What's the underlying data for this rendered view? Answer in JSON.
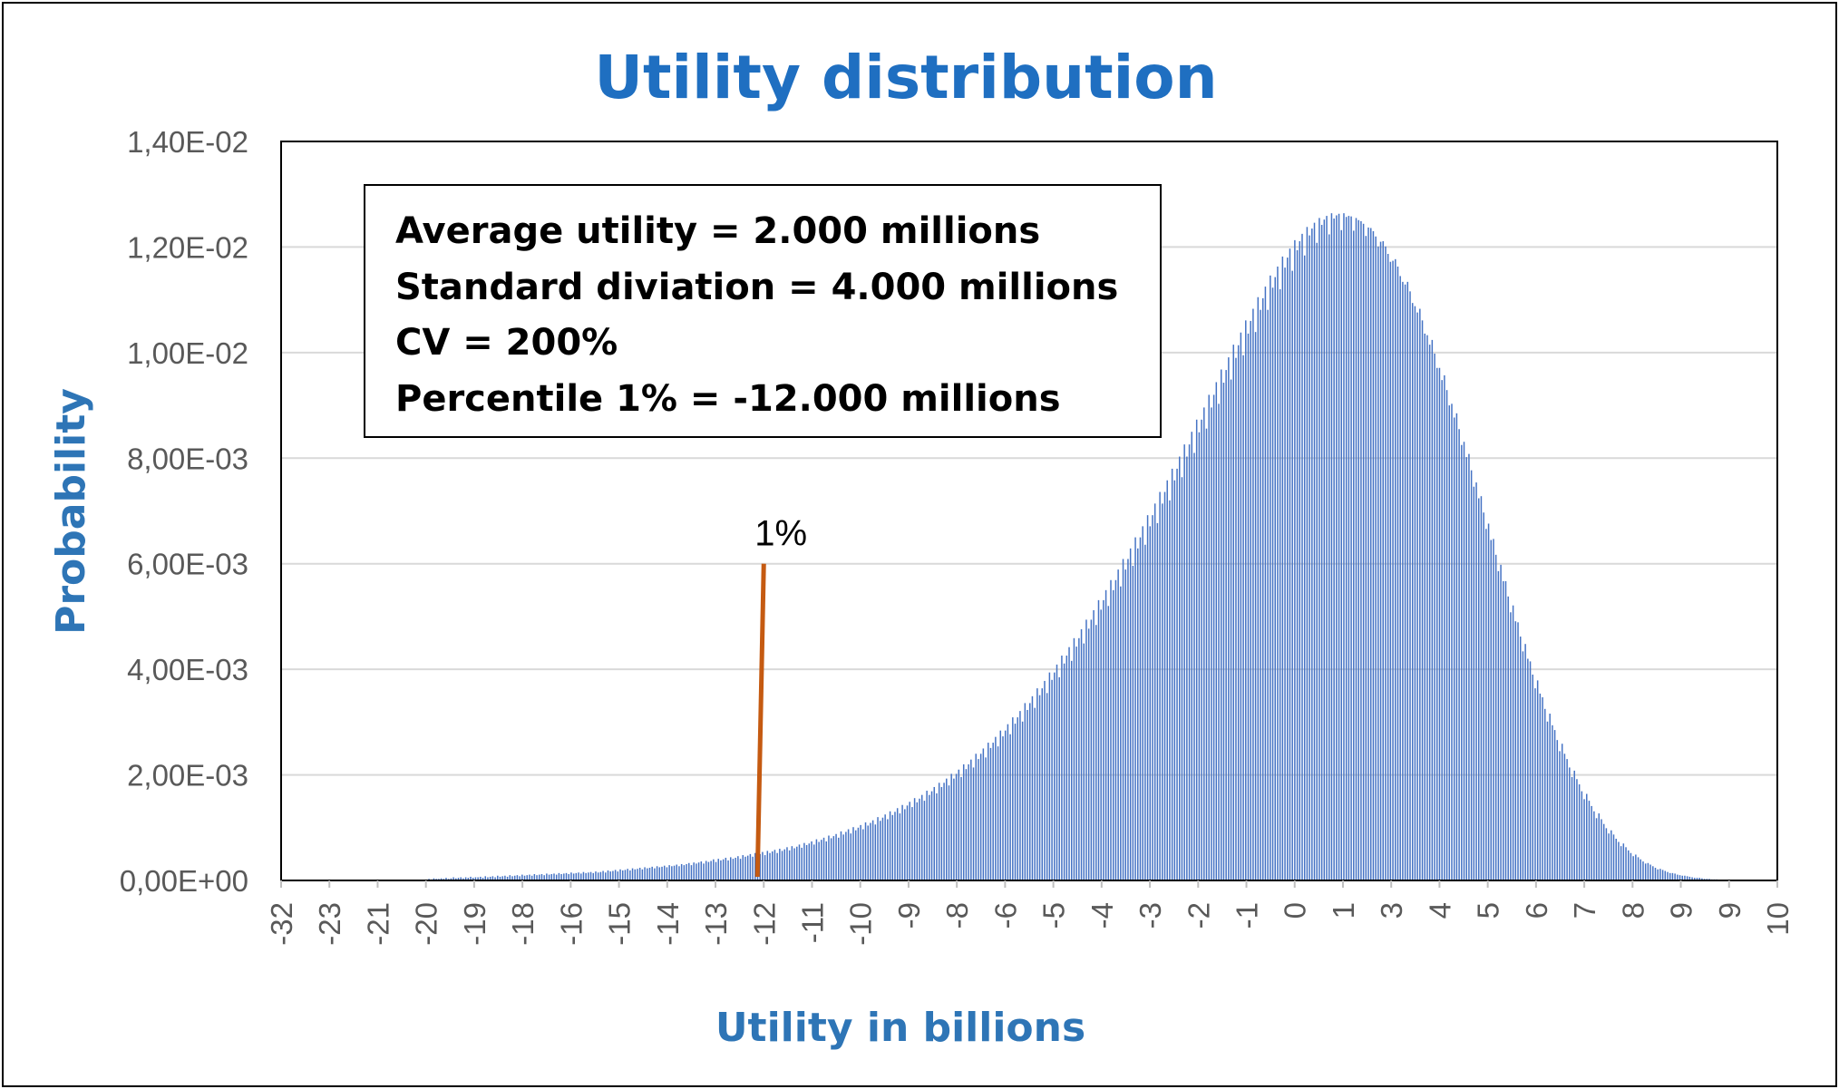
{
  "chart_data": {
    "type": "bar",
    "title": "Utility distribution",
    "xlabel": "Utility in billions",
    "ylabel": "Probability",
    "ylim": [
      0,
      0.014
    ],
    "ytick_labels": [
      "0,00E+00",
      "2,00E-03",
      "4,00E-03",
      "6,00E-03",
      "8,00E-03",
      "1,00E-02",
      "1,20E-02",
      "1,40E-02"
    ],
    "xtick_labels": [
      "-32",
      "-23",
      "-21",
      "-20",
      "-19",
      "-18",
      "-16",
      "-15",
      "-14",
      "-13",
      "-12",
      "-11",
      "-10",
      "-9",
      "-8",
      "-6",
      "-5",
      "-4",
      "-3",
      "-2",
      "-1",
      "0",
      "1",
      "3",
      "4",
      "5",
      "6",
      "7",
      "8",
      "9",
      "9",
      "10"
    ],
    "grid": true,
    "legend": "none",
    "series": [
      {
        "color": "#4472c4",
        "x_range": [
          -32,
          10
        ],
        "values": [
          0,
          0,
          0,
          0,
          0,
          0,
          0,
          0,
          0,
          0,
          0,
          0,
          0,
          0,
          0,
          0,
          0,
          0,
          0,
          0,
          0,
          0,
          0,
          0,
          0,
          0,
          0,
          0,
          0,
          0,
          0,
          0,
          0,
          0,
          0,
          0,
          0,
          0,
          0,
          0,
          0,
          0,
          0,
          0,
          0,
          0,
          0,
          0,
          0,
          0,
          0,
          0,
          0,
          0,
          0,
          0,
          0,
          0,
          0,
          0,
          3e-05,
          2e-05,
          4e-05,
          3e-05,
          3e-05,
          4e-05,
          3e-05,
          5e-05,
          3e-05,
          4e-05,
          6e-05,
          4e-05,
          5e-05,
          6e-05,
          4e-05,
          6e-05,
          5e-05,
          7e-05,
          5e-05,
          6e-05,
          6e-05,
          7e-05,
          5e-05,
          8e-05,
          6e-05,
          7e-05,
          8e-05,
          6e-05,
          9e-05,
          7e-05,
          8e-05,
          9e-05,
          7e-05,
          0.0001,
          8e-05,
          9e-05,
          0.0001,
          8e-05,
          0.00011,
          9e-05,
          0.0001,
          0.00011,
          9e-05,
          0.00012,
          0.0001,
          0.00011,
          0.00012,
          0.0001,
          0.00013,
          0.00011,
          0.00012,
          0.00013,
          0.00011,
          0.00014,
          0.00012,
          0.00013,
          0.00014,
          0.00012,
          0.00015,
          0.00013,
          0.00014,
          0.00015,
          0.00013,
          0.00016,
          0.00014,
          0.00015,
          0.00016,
          0.00014,
          0.00017,
          0.00015,
          0.00016,
          0.00018,
          0.00015,
          0.00019,
          0.00017,
          0.00018,
          0.0002,
          0.00017,
          0.00021,
          0.00019,
          0.0002,
          0.00022,
          0.00019,
          0.00023,
          0.00021,
          0.00022,
          0.00024,
          0.00021,
          0.00025,
          0.00023,
          0.00024,
          0.00026,
          0.00023,
          0.00027,
          0.00025,
          0.00026,
          0.00028,
          0.00025,
          0.00029,
          0.00027,
          0.00028,
          0.0003,
          0.00027,
          0.00031,
          0.00029,
          0.00031,
          0.00033,
          0.00029,
          0.00034,
          0.00032,
          0.00034,
          0.00036,
          0.00032,
          0.00037,
          0.00035,
          0.00037,
          0.0004,
          0.00035,
          0.00041,
          0.00038,
          0.0004,
          0.00043,
          0.00038,
          0.00044,
          0.00041,
          0.00043,
          0.00046,
          0.00041,
          0.00048,
          0.00045,
          0.00047,
          0.0005,
          0.00045,
          0.00052,
          0.00048,
          0.0005,
          0.00054,
          0.00048,
          0.00056,
          0.00052,
          0.00055,
          0.00058,
          0.00052,
          0.0006,
          0.00056,
          0.00059,
          0.00063,
          0.00057,
          0.00065,
          0.00061,
          0.00064,
          0.00068,
          0.00062,
          0.00071,
          0.00067,
          0.0007,
          0.00074,
          0.00068,
          0.00078,
          0.00073,
          0.00077,
          0.00081,
          0.00074,
          0.00085,
          0.0008,
          0.00084,
          0.00088,
          0.00081,
          0.00093,
          0.00087,
          0.00092,
          0.00097,
          0.00089,
          0.00101,
          0.00095,
          0.001,
          0.00105,
          0.00097,
          0.0011,
          0.00104,
          0.00109,
          0.00114,
          0.00106,
          0.0012,
          0.00113,
          0.00119,
          0.00125,
          0.00116,
          0.00131,
          0.00124,
          0.0013,
          0.00137,
          0.00127,
          0.00143,
          0.00135,
          0.00142,
          0.00149,
          0.00139,
          0.00156,
          0.00148,
          0.00155,
          0.00162,
          0.00151,
          0.0017,
          0.00162,
          0.00169,
          0.00177,
          0.00165,
          0.00185,
          0.00177,
          0.00185,
          0.00193,
          0.0018,
          0.00202,
          0.00193,
          0.00202,
          0.0021,
          0.00196,
          0.0022,
          0.00211,
          0.0022,
          0.00229,
          0.00214,
          0.0024,
          0.0023,
          0.0024,
          0.0025,
          0.00233,
          0.00261,
          0.00251,
          0.00261,
          0.00272,
          0.00254,
          0.00284,
          0.00273,
          0.00284,
          0.00296,
          0.00277,
          0.00309,
          0.00297,
          0.00309,
          0.00321,
          0.00301,
          0.00336,
          0.00323,
          0.00336,
          0.00349,
          0.00327,
          0.00364,
          0.00351,
          0.00364,
          0.00378,
          0.00355,
          0.00394,
          0.0038,
          0.00394,
          0.00409,
          0.00385,
          0.00426,
          0.00411,
          0.00426,
          0.00442,
          0.00416,
          0.00459,
          0.00443,
          0.00459,
          0.00476,
          0.00449,
          0.00494,
          0.00477,
          0.00494,
          0.00512,
          0.00484,
          0.00531,
          0.00513,
          0.00531,
          0.0055,
          0.0052,
          0.00569,
          0.0055,
          0.00569,
          0.00589,
          0.00557,
          0.00609,
          0.00589,
          0.00609,
          0.00629,
          0.00596,
          0.0065,
          0.00629,
          0.0065,
          0.00671,
          0.00636,
          0.00692,
          0.00671,
          0.00692,
          0.00714,
          0.00677,
          0.00736,
          0.00714,
          0.00736,
          0.00758,
          0.0072,
          0.0078,
          0.00758,
          0.0078,
          0.00803,
          0.00764,
          0.00826,
          0.00803,
          0.00826,
          0.0085,
          0.0081,
          0.00873,
          0.00849,
          0.00873,
          0.00896,
          0.00856,
          0.0092,
          0.00896,
          0.0092,
          0.00944,
          0.00903,
          0.00968,
          0.00943,
          0.00967,
          0.00991,
          0.00949,
          0.01015,
          0.0099,
          0.01014,
          0.01038,
          0.00995,
          0.01061,
          0.01036,
          0.0106,
          0.01083,
          0.01039,
          0.01105,
          0.01081,
          0.01103,
          0.01125,
          0.01081,
          0.01146,
          0.01123,
          0.01143,
          0.01163,
          0.0112,
          0.01182,
          0.01161,
          0.0118,
          0.01197,
          0.01155,
          0.01213,
          0.01194,
          0.01211,
          0.01225,
          0.01184,
          0.01238,
          0.01222,
          0.01235,
          0.01246,
          0.01208,
          0.01255,
          0.01242,
          0.01252,
          0.01259,
          0.01224,
          0.01264,
          0.01254,
          0.0126,
          0.01263,
          0.01232,
          0.01264,
          0.01257,
          0.01259,
          0.01258,
          0.01231,
          0.01255,
          0.01251,
          0.01249,
          0.01244,
          0.01221,
          0.01237,
          0.01236,
          0.0123,
          0.0122,
          0.01201,
          0.0121,
          0.01211,
          0.01201,
          0.01187,
          0.01172,
          0.01174,
          0.01177,
          0.01163,
          0.01145,
          0.01134,
          0.01129,
          0.01134,
          0.01116,
          0.01094,
          0.01088,
          0.01076,
          0.01083,
          0.01061,
          0.01036,
          0.01033,
          0.01015,
          0.01024,
          0.00998,
          0.00971,
          0.00971,
          0.00948,
          0.00957,
          0.00929,
          0.009,
          0.00903,
          0.00877,
          0.00885,
          0.00855,
          0.00825,
          0.00831,
          0.00802,
          0.00808,
          0.00777,
          0.00746,
          0.00754,
          0.00724,
          0.00728,
          0.00697,
          0.00666,
          0.00676,
          0.00645,
          0.00647,
          0.00617,
          0.00586,
          0.00598,
          0.00567,
          0.00567,
          0.00538,
          0.00508,
          0.00521,
          0.00491,
          0.00489,
          0.00462,
          0.00434,
          0.00448,
          0.0042,
          0.00415,
          0.0039,
          0.00364,
          0.00379,
          0.00354,
          0.00347,
          0.00325,
          0.00301,
          0.00316,
          0.00294,
          0.00285,
          0.00266,
          0.00245,
          0.00259,
          0.0024,
          0.0023,
          0.00214,
          0.00196,
          0.00208,
          0.00192,
          0.00182,
          0.00169,
          0.00154,
          0.00164,
          0.00151,
          0.00141,
          0.00131,
          0.00118,
          0.00127,
          0.00116,
          0.00107,
          0.00099,
          0.00089,
          0.00095,
          0.00087,
          0.00079,
          0.00073,
          0.00065,
          0.0007,
          0.00063,
          0.00057,
          0.00052,
          0.00046,
          0.00049,
          0.00044,
          0.0004,
          0.00036,
          0.00032,
          0.00033,
          0.0003,
          0.00027,
          0.00024,
          0.00021,
          0.00022,
          0.0002,
          0.00018,
          0.00016,
          0.00014,
          0.00014,
          0.00013,
          0.00011,
          0.0001,
          9e-05,
          9e-05,
          8e-05,
          7e-05,
          6e-05,
          5e-05,
          5e-05,
          5e-05,
          4e-05,
          3e-05,
          3e-05,
          3e-05,
          2e-05,
          2e-05,
          2e-05,
          1e-05,
          1e-05,
          1e-05,
          1e-05,
          0,
          0,
          0,
          0,
          0,
          0,
          0,
          0,
          0,
          0,
          0,
          0,
          0,
          0,
          0,
          0,
          0,
          0,
          0,
          0
        ]
      }
    ],
    "annotations": [
      {
        "label": "1%",
        "marker_value": 0.006,
        "color": "#c55a11"
      }
    ],
    "stats_box": [
      "Average utility = 2.000 millions",
      "Standard diviation = 4.000 millions",
      "CV = 200%",
      "Percentile 1% = -12.000 millions"
    ]
  }
}
